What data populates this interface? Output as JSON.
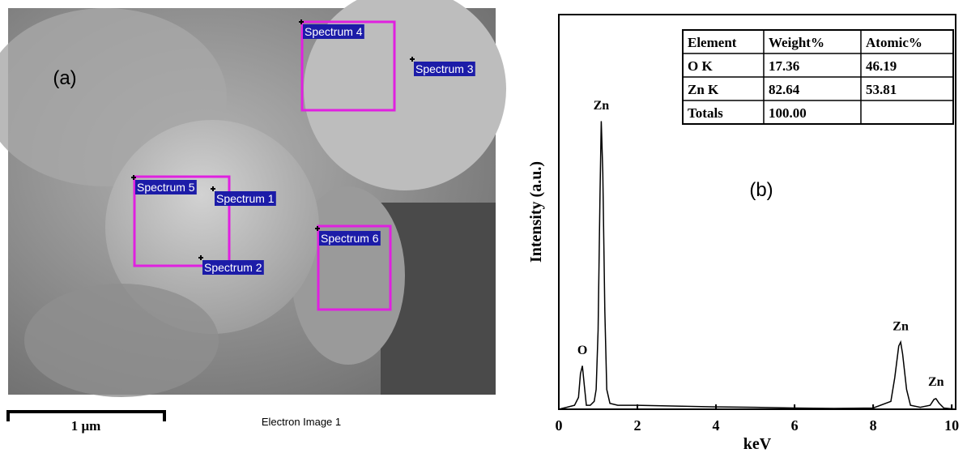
{
  "panel_a": {
    "label": "(a)",
    "scale_bar": "1 μm",
    "caption": "Electron Image 1",
    "spectra": [
      "Spectrum 4",
      "Spectrum 3",
      "Spectrum 5",
      "Spectrum 1",
      "Spectrum 2",
      "Spectrum 6"
    ]
  },
  "chart_data": {
    "type": "line",
    "panel_label": "(b)",
    "x_label": "keV",
    "y_label": "Intensity (a.u.)",
    "color": "#000000",
    "x": [
      0,
      0.2,
      0.4,
      0.5,
      0.55,
      0.6,
      0.65,
      0.7,
      0.8,
      0.9,
      0.95,
      1.0,
      1.05,
      1.08,
      1.12,
      1.17,
      1.22,
      1.3,
      1.5,
      2,
      3,
      4,
      5,
      6,
      7,
      8,
      8.45,
      8.55,
      8.65,
      8.7,
      8.75,
      8.85,
      8.95,
      9.2,
      9.45,
      9.55,
      9.6,
      9.68,
      9.8,
      10.1
    ],
    "values": [
      0,
      0.5,
      1,
      3,
      9,
      11,
      6,
      1,
      1,
      2,
      5,
      20,
      55,
      73,
      60,
      25,
      5,
      1.5,
      1,
      1,
      0.8,
      0.6,
      0.5,
      0.3,
      0.2,
      0.3,
      2,
      8,
      16,
      17,
      14,
      5,
      1,
      0.5,
      1,
      2.5,
      2.7,
      1.5,
      0.3,
      0
    ],
    "xlim": [
      0,
      10.1
    ],
    "xticks": [
      0,
      2,
      4,
      6,
      8,
      10
    ],
    "ylim": [
      0,
      100
    ],
    "annotations": [
      {
        "text": "O",
        "x": 0.6,
        "y": 14
      },
      {
        "text": "Zn",
        "x": 1.08,
        "y": 76
      },
      {
        "text": "Zn",
        "x": 8.7,
        "y": 20
      },
      {
        "text": "Zn",
        "x": 9.6,
        "y": 6
      }
    ],
    "table": {
      "header": [
        "Element",
        "Weight%",
        "Atomic%"
      ],
      "rows": [
        [
          "O K",
          "17.36",
          "46.19"
        ],
        [
          "Zn K",
          "82.64",
          "53.81"
        ],
        [
          "Totals",
          "100.00",
          ""
        ]
      ]
    }
  }
}
